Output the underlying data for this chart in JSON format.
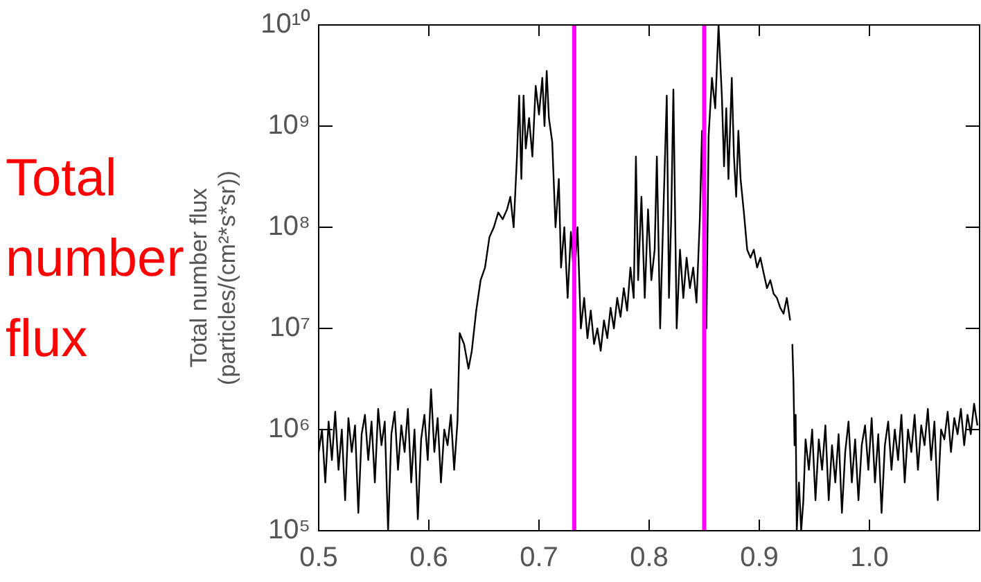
{
  "chart_data": {
    "type": "line",
    "ylabel": "Total number flux\n(particles/(cm²*s*sr))",
    "annotations": [
      "Total number flux"
    ],
    "log": "y",
    "grid": false,
    "legend": false,
    "marker": "none",
    "line_style": "solid",
    "xlim": [
      0.5,
      1.1
    ],
    "xticks": [
      0.5,
      0.6,
      0.7,
      0.8,
      0.9,
      {
        "value": 1,
        "label": "1.0"
      }
    ],
    "ylim": [
      100000,
      10000000000
    ],
    "yticks": [
      {
        "value": 100000,
        "label": "10⁵"
      },
      {
        "value": 1000000,
        "label": "10⁶"
      },
      {
        "value": 10000000,
        "label": "10⁷"
      },
      {
        "value": 100000000,
        "label": "10⁸"
      },
      {
        "value": 1000000000,
        "label": "10⁹"
      },
      {
        "value": 10000000000,
        "label": "10¹⁰"
      }
    ],
    "ref_lines": [
      {
        "axis": "x",
        "value": 0.732,
        "color": "#ff00ff"
      },
      {
        "axis": "x",
        "value": 0.85,
        "color": "#ff00ff"
      }
    ],
    "series": [
      {
        "color": "#000000",
        "x": [
          0.5,
          0.503,
          0.506,
          0.509,
          0.512,
          0.515,
          0.518,
          0.521,
          0.524,
          0.527,
          0.53,
          0.533,
          0.536,
          0.539,
          0.542,
          0.545,
          0.548,
          0.551,
          0.554,
          0.557,
          0.56,
          0.563,
          0.566,
          0.569,
          0.572,
          0.575,
          0.578,
          0.581,
          0.584,
          0.587,
          0.59,
          0.593,
          0.596,
          0.599,
          0.602,
          0.605,
          0.608,
          0.611,
          0.614,
          0.617,
          0.62,
          0.623,
          0.626,
          0.628,
          0.632,
          0.636,
          0.639,
          0.643,
          0.647,
          0.651,
          0.655,
          0.659,
          0.663,
          0.667,
          0.671,
          0.674,
          0.677,
          0.68,
          0.682,
          0.684,
          0.686,
          0.688,
          0.691,
          0.694,
          0.697,
          0.7,
          0.703,
          0.705,
          0.707,
          0.709,
          0.712,
          0.715,
          0.718,
          0.72,
          0.723,
          0.726,
          0.729,
          0.732,
          0.735,
          0.738,
          0.741,
          0.744,
          0.747,
          0.75,
          0.753,
          0.756,
          0.759,
          0.762,
          0.765,
          0.768,
          0.771,
          0.774,
          0.777,
          0.78,
          0.783,
          0.786,
          0.788,
          0.79,
          0.793,
          0.796,
          0.799,
          0.802,
          0.805,
          0.807,
          0.81,
          0.813,
          0.816,
          0.818,
          0.82,
          0.822,
          0.825,
          0.828,
          0.831,
          0.834,
          0.837,
          0.84,
          0.843,
          0.846,
          0.848,
          0.85,
          0.852,
          0.854,
          0.857,
          0.86,
          0.863,
          0.866,
          0.868,
          0.87,
          0.872,
          0.875,
          0.877,
          0.879,
          0.881,
          0.883,
          0.886,
          0.889,
          0.892,
          0.895,
          0.898,
          0.901,
          0.904,
          0.907,
          0.91,
          0.913,
          0.916,
          0.919,
          0.922,
          0.925,
          0.928,
          0.929,
          0.93,
          0.931,
          0.932,
          0.933,
          0.934,
          0.936,
          0.938,
          0.94,
          0.942,
          0.945,
          0.948,
          0.951,
          0.954,
          0.957,
          0.96,
          0.963,
          0.966,
          0.969,
          0.972,
          0.975,
          0.978,
          0.981,
          0.984,
          0.987,
          0.99,
          0.993,
          0.996,
          0.999,
          1.002,
          1.005,
          1.008,
          1.011,
          1.014,
          1.017,
          1.02,
          1.023,
          1.026,
          1.029,
          1.032,
          1.035,
          1.038,
          1.041,
          1.044,
          1.047,
          1.05,
          1.053,
          1.056,
          1.059,
          1.062,
          1.065,
          1.068,
          1.071,
          1.074,
          1.077,
          1.08,
          1.083,
          1.086,
          1.089,
          1.092,
          1.095,
          1.098
        ],
        "values": [
          600000.0,
          1000000.0,
          300000.0,
          1200000.0,
          500000.0,
          1500000.0,
          400000.0,
          1000000.0,
          200000.0,
          1300000.0,
          600000.0,
          1100000.0,
          150000.0,
          900000.0,
          1400000.0,
          500000.0,
          1200000.0,
          300000.0,
          1600000.0,
          700000.0,
          1200000.0,
          100000.0,
          900000.0,
          1500000.0,
          400000.0,
          1100000.0,
          600000.0,
          1600000.0,
          300000.0,
          1000000.0,
          130000.0,
          800000.0,
          1400000.0,
          500000.0,
          2500000.0,
          600000.0,
          1300000.0,
          300000.0,
          1000000.0,
          700000.0,
          1400000.0,
          400000.0,
          1200000.0,
          9000000.0,
          7000000.0,
          4000000.0,
          6000000.0,
          15000000.0,
          30000000.0,
          40000000.0,
          80000000.0,
          100000000.0,
          140000000.0,
          120000000.0,
          150000000.0,
          200000000.0,
          100000000.0,
          500000000.0,
          2000000000.0,
          300000000.0,
          2000000000.0,
          600000000.0,
          1200000000.0,
          500000000.0,
          2500000000.0,
          1300000000.0,
          3000000000.0,
          1000000000.0,
          3500000000.0,
          1200000000.0,
          700000000.0,
          100000000.0,
          300000000.0,
          40000000.0,
          100000000.0,
          20000000.0,
          90000000.0,
          30000000.0,
          100000000.0,
          10000000.0,
          20000000.0,
          8000000.0,
          15000000.0,
          7000000.0,
          10000000.0,
          6000000.0,
          12000000.0,
          8000000.0,
          16000000.0,
          10000000.0,
          20000000.0,
          13000000.0,
          25000000.0,
          15000000.0,
          40000000.0,
          20000000.0,
          500000000.0,
          30000000.0,
          200000000.0,
          20000000.0,
          150000000.0,
          30000000.0,
          60000000.0,
          500000000.0,
          10000000.0,
          150000000.0,
          2000000000.0,
          20000000.0,
          120000000.0,
          2300000000.0,
          10000000.0,
          60000000.0,
          20000000.0,
          50000000.0,
          25000000.0,
          40000000.0,
          18000000.0,
          120000000.0,
          900000000.0,
          40000000.0,
          10000000.0,
          800000000.0,
          3000000000.0,
          1500000000.0,
          10000000000.0,
          2000000000.0,
          400000000.0,
          1500000000.0,
          300000000.0,
          3000000000.0,
          500000000.0,
          200000000.0,
          900000000.0,
          300000000.0,
          140000000.0,
          60000000.0,
          50000000.0,
          60000000.0,
          40000000.0,
          50000000.0,
          35000000.0,
          25000000.0,
          30000000.0,
          22000000.0,
          20000000.0,
          16000000.0,
          14000000.0,
          20000000.0,
          12000000.0,
          null,
          7000000.0,
          3000000.0,
          700000.0,
          1400000.0,
          100000.0,
          300000.0,
          100000.0,
          200000.0,
          800000.0,
          400000.0,
          1000000.0,
          200000.0,
          800000.0,
          400000.0,
          1100000.0,
          200000.0,
          700000.0,
          300000.0,
          900000.0,
          150000.0,
          600000.0,
          1200000.0,
          300000.0,
          800000.0,
          200000.0,
          700000.0,
          1100000.0,
          400000.0,
          1300000.0,
          300000.0,
          900000.0,
          150000.0,
          700000.0,
          1200000.0,
          400000.0,
          1000000.0,
          500000.0,
          1400000.0,
          300000.0,
          1000000.0,
          600000.0,
          1400000.0,
          400000.0,
          1100000.0,
          700000.0,
          1600000.0,
          500000.0,
          1200000.0,
          200000.0,
          1000000.0,
          800000.0,
          1500000.0,
          600000.0,
          1300000.0,
          900000.0,
          1600000.0,
          700000.0,
          1400000.0,
          900000.0,
          1800000.0,
          1100000.0
        ]
      }
    ]
  }
}
